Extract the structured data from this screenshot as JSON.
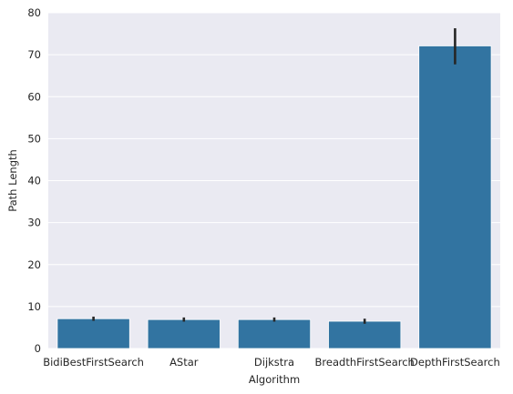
{
  "chart_data": {
    "type": "bar",
    "title": "",
    "xlabel": "Algorithm",
    "ylabel": "Path Length",
    "categories": [
      "BidiBestFirstSearch",
      "AStar",
      "Dijkstra",
      "BreadthFirstSearch",
      "DepthFirstSearch"
    ],
    "values": [
      7.1,
      6.9,
      6.9,
      6.5,
      72.1
    ],
    "error_low": [
      6.6,
      6.4,
      6.4,
      5.9,
      67.7
    ],
    "error_high": [
      7.6,
      7.4,
      7.4,
      7.1,
      76.3
    ],
    "ylim": [
      0,
      80
    ],
    "yticks": [
      0,
      10,
      20,
      30,
      40,
      50,
      60,
      70,
      80
    ],
    "grid": true,
    "colors": {
      "bar": "#3274a1",
      "error_bar": "#262626",
      "plot_background": "#eaeaf2",
      "grid": "#ffffff"
    }
  }
}
